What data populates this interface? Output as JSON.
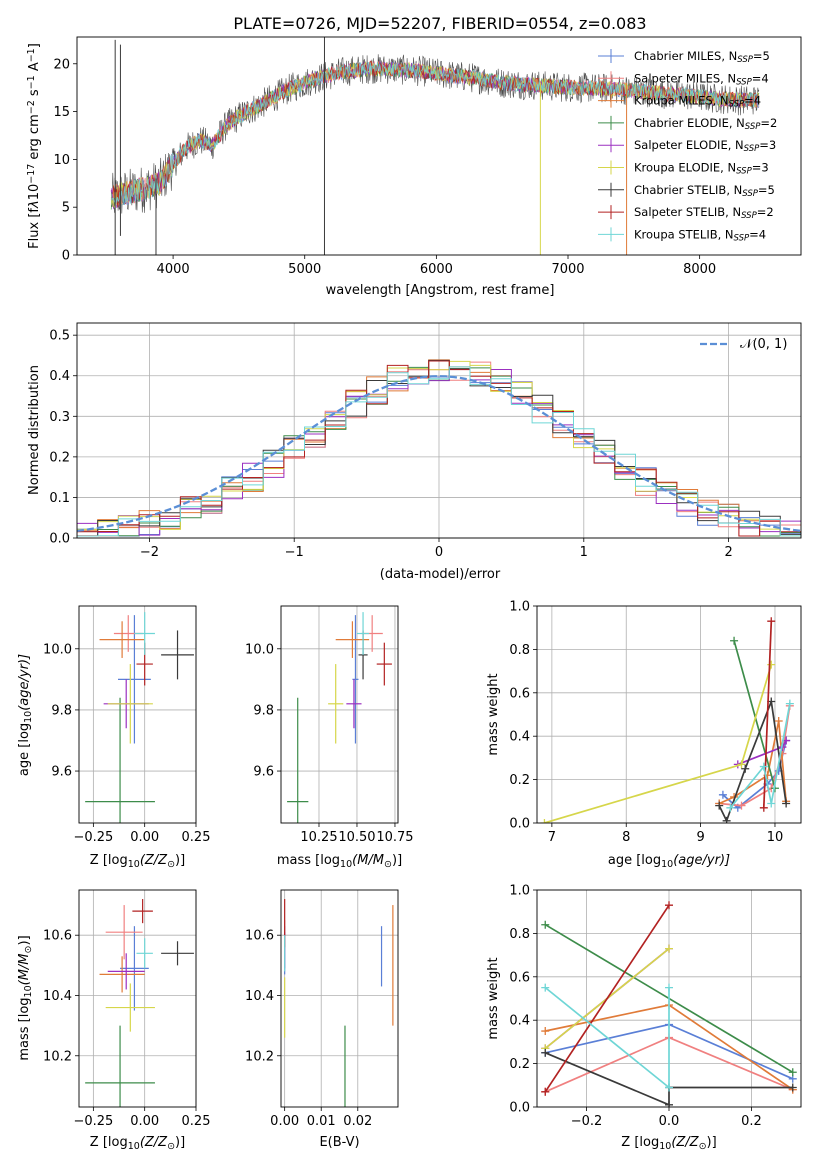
{
  "chart_data": [
    {
      "id": "spectrum",
      "type": "line",
      "title": "PLATE=0726, MJD=52207, FIBERID=0554, z=0.083",
      "xlabel": "wavelength [Angstrom, rest frame]",
      "ylabel_parts": [
        "Flux [f",
        "λ",
        "10",
        "−17",
        " erg cm",
        "−2",
        " s",
        "−1",
        " A",
        "−1",
        "]"
      ],
      "xlim": [
        3270,
        8770
      ],
      "ylim": [
        0,
        22.8
      ],
      "xticks": [
        4000,
        5000,
        6000,
        7000,
        8000
      ],
      "yticks": [
        0,
        5,
        10,
        15,
        20
      ],
      "grid": false,
      "legend_position": "right",
      "legend": [
        {
          "name": "Chabrier MILES",
          "n": "5",
          "color": "#5a7fd6"
        },
        {
          "name": "Salpeter MILES",
          "n": "4",
          "color": "#f08080"
        },
        {
          "name": "Kroupa MILES",
          "n": "4",
          "color": "#e07b39"
        },
        {
          "name": "Chabrier ELODIE",
          "n": "2",
          "color": "#3d8c4a"
        },
        {
          "name": "Salpeter ELODIE",
          "n": "3",
          "color": "#9b30c0"
        },
        {
          "name": "Kroupa ELODIE",
          "n": "3",
          "color": "#d6d64a"
        },
        {
          "name": "Chabrier STELIB",
          "n": "5",
          "color": "#3a3a3a"
        },
        {
          "name": "Salpeter STELIB",
          "n": "2",
          "color": "#b22222"
        },
        {
          "name": "Kroupa STELIB",
          "n": "4",
          "color": "#6fd6d6"
        }
      ],
      "legend_label_prefix": ", N",
      "legend_label_sub": "SSP",
      "legend_label_eq": "=",
      "continuum": {
        "x": [
          3530,
          3650,
          3800,
          3900,
          4000,
          4100,
          4200,
          4300,
          4400,
          4500,
          4700,
          4900,
          5100,
          5300,
          5500,
          5700,
          5900,
          6100,
          6300,
          6500,
          6700,
          6900,
          7100,
          7300,
          7500,
          7700,
          7900,
          8100,
          8300
        ],
        "y": [
          6,
          6.5,
          7,
          7.5,
          9.5,
          11.2,
          12.0,
          11.5,
          13.5,
          14.5,
          16.0,
          17.5,
          18.5,
          19.2,
          19.5,
          19.4,
          19.2,
          18.8,
          18.5,
          18.0,
          17.8,
          17.6,
          17.5,
          17.4,
          17.2,
          16.9,
          16.7,
          16.4,
          16.2
        ]
      }
    },
    {
      "id": "residuals",
      "type": "bar",
      "xlabel": "(data-model)/error",
      "ylabel": "Normed distribution",
      "xlim": [
        -2.5,
        2.5
      ],
      "ylim": [
        0,
        0.53
      ],
      "xticks": [
        -2,
        -1,
        0,
        1,
        2
      ],
      "yticks": [
        0.0,
        0.1,
        0.2,
        0.3,
        0.4,
        0.5
      ],
      "grid": true,
      "legend_label": "𝒩(0, 1)",
      "legend_position": "top-right",
      "normal_color": "#5b8fd6"
    },
    {
      "id": "age_vs_Z",
      "type": "scatter",
      "xlabel_parts": [
        "Z [log",
        "10",
        "(Z/Z",
        "⊙",
        ")]"
      ],
      "ylabel_parts": [
        "age  [log",
        "10",
        "(age/yr)]"
      ],
      "xlim": [
        -0.32,
        0.25
      ],
      "ylim": [
        9.43,
        10.14
      ],
      "xticks": [
        -0.25,
        0.0,
        0.25
      ],
      "xtick_labels": [
        "−0.25",
        "0.00",
        "0.25"
      ],
      "yticks": [
        9.6,
        9.8,
        10.0
      ],
      "grid": true,
      "points": [
        {
          "x": -0.05,
          "y": 9.9,
          "xerr": 0.08,
          "yerr": 0.21,
          "color": "#5a7fd6"
        },
        {
          "x": -0.08,
          "y": 10.05,
          "xerr": 0.07,
          "yerr": 0.06,
          "color": "#f08080"
        },
        {
          "x": -0.11,
          "y": 10.03,
          "xerr": 0.11,
          "yerr": 0.06,
          "color": "#e07b39"
        },
        {
          "x": -0.12,
          "y": 9.5,
          "xerr": 0.17,
          "yerr": 0.34,
          "color": "#3d8c4a"
        },
        {
          "x": -0.09,
          "y": 9.82,
          "xerr": 0.11,
          "yerr": 0.08,
          "color": "#9b30c0"
        },
        {
          "x": -0.07,
          "y": 9.82,
          "xerr": 0.11,
          "yerr": 0.13,
          "color": "#d6d64a"
        },
        {
          "x": 0.16,
          "y": 9.98,
          "xerr": 0.08,
          "yerr": 0.08,
          "color": "#3a3a3a"
        },
        {
          "x": 0.0,
          "y": 9.95,
          "xerr": 0.04,
          "yerr": 0.07,
          "color": "#b22222"
        },
        {
          "x": 0.0,
          "y": 10.05,
          "xerr": 0.05,
          "yerr": 0.07,
          "color": "#6fd6d6"
        }
      ]
    },
    {
      "id": "age_vs_mass",
      "type": "scatter",
      "xlabel_parts": [
        "mass [log",
        "10",
        "(M/M",
        "⊙",
        ")]"
      ],
      "xlim": [
        10.0,
        10.77
      ],
      "ylim": [
        9.43,
        10.14
      ],
      "xticks": [
        10.25,
        10.5,
        10.75
      ],
      "xtick_labels": [
        "10.25",
        "10.50",
        "10.75"
      ],
      "yticks": [
        9.6,
        9.8,
        10.0
      ],
      "grid": true,
      "points": [
        {
          "x": 10.49,
          "y": 9.9,
          "xerr": 0.02,
          "yerr": 0.21,
          "color": "#5a7fd6"
        },
        {
          "x": 10.6,
          "y": 10.05,
          "xerr": 0.07,
          "yerr": 0.06,
          "color": "#f08080"
        },
        {
          "x": 10.47,
          "y": 10.03,
          "xerr": 0.11,
          "yerr": 0.06,
          "color": "#e07b39"
        },
        {
          "x": 10.11,
          "y": 9.5,
          "xerr": 0.07,
          "yerr": 0.34,
          "color": "#3d8c4a"
        },
        {
          "x": 10.48,
          "y": 9.82,
          "xerr": 0.05,
          "yerr": 0.08,
          "color": "#9b30c0"
        },
        {
          "x": 10.36,
          "y": 9.82,
          "xerr": 0.05,
          "yerr": 0.13,
          "color": "#d6d64a"
        },
        {
          "x": 10.54,
          "y": 9.98,
          "xerr": 0.03,
          "yerr": 0.08,
          "color": "#3a3a3a"
        },
        {
          "x": 10.68,
          "y": 9.95,
          "xerr": 0.05,
          "yerr": 0.07,
          "color": "#b22222"
        },
        {
          "x": 10.54,
          "y": 10.05,
          "xerr": 0.04,
          "yerr": 0.07,
          "color": "#6fd6d6"
        }
      ]
    },
    {
      "id": "massweight_vs_age",
      "type": "line",
      "xlabel_parts": [
        "age  [log",
        "10",
        "(age/yr)]"
      ],
      "ylabel": "mass weight",
      "xlim": [
        6.8,
        10.35
      ],
      "ylim": [
        0,
        1.0
      ],
      "xticks": [
        7,
        8,
        9,
        10
      ],
      "yticks": [
        0.0,
        0.2,
        0.4,
        0.6,
        0.8,
        1.0
      ],
      "grid": true,
      "series": [
        {
          "color": "#5a7fd6",
          "x": [
            9.3,
            9.5,
            9.9,
            10.05,
            10.15
          ],
          "y": [
            0.13,
            0.07,
            0.18,
            0.24,
            0.38
          ]
        },
        {
          "color": "#f08080",
          "x": [
            9.25,
            9.55,
            9.95,
            10.1,
            10.2
          ],
          "y": [
            0.09,
            0.08,
            0.16,
            0.32,
            0.54
          ]
        },
        {
          "color": "#e07b39",
          "x": [
            9.25,
            9.45,
            9.9,
            10.05,
            10.15
          ],
          "y": [
            0.09,
            0.12,
            0.22,
            0.47,
            0.1
          ]
        },
        {
          "color": "#3d8c4a",
          "x": [
            9.45,
            10.0
          ],
          "y": [
            0.84,
            0.16
          ]
        },
        {
          "color": "#9b30c0",
          "x": [
            9.5,
            10.1,
            10.15
          ],
          "y": [
            0.27,
            0.35,
            0.38
          ]
        },
        {
          "color": "#d6d64a",
          "x": [
            6.9,
            9.55,
            9.95
          ],
          "y": [
            0.0,
            0.27,
            0.73
          ]
        },
        {
          "color": "#3a3a3a",
          "x": [
            9.25,
            9.35,
            9.6,
            9.95,
            10.15
          ],
          "y": [
            0.08,
            0.01,
            0.25,
            0.56,
            0.09
          ]
        },
        {
          "color": "#b22222",
          "x": [
            9.85,
            9.95
          ],
          "y": [
            0.07,
            0.93
          ]
        },
        {
          "color": "#6fd6d6",
          "x": [
            9.4,
            9.85,
            9.95,
            10.2
          ],
          "y": [
            0.07,
            0.26,
            0.09,
            0.55
          ]
        }
      ]
    },
    {
      "id": "mass_vs_Z",
      "type": "scatter",
      "xlabel_parts": [
        "Z [log",
        "10",
        "(Z/Z",
        "⊙",
        ")]"
      ],
      "ylabel_parts": [
        "mass [log",
        "10",
        "(M/M",
        "⊙",
        ")]"
      ],
      "xlim": [
        -0.32,
        0.25
      ],
      "ylim": [
        10.03,
        10.75
      ],
      "xticks": [
        -0.25,
        0.0,
        0.25
      ],
      "xtick_labels": [
        "−0.25",
        "0.00",
        "0.25"
      ],
      "yticks": [
        10.2,
        10.4,
        10.6
      ],
      "grid": true,
      "points": [
        {
          "x": -0.05,
          "y": 10.49,
          "xerr": 0.07,
          "yerr": 0.14,
          "color": "#5a7fd6"
        },
        {
          "x": -0.1,
          "y": 10.61,
          "xerr": 0.09,
          "yerr": 0.09,
          "color": "#f08080"
        },
        {
          "x": -0.11,
          "y": 10.47,
          "xerr": 0.11,
          "yerr": 0.06,
          "color": "#e07b39"
        },
        {
          "x": -0.12,
          "y": 10.11,
          "xerr": 0.17,
          "yerr": 0.19,
          "color": "#3d8c4a"
        },
        {
          "x": -0.09,
          "y": 10.48,
          "xerr": 0.09,
          "yerr": 0.06,
          "color": "#9b30c0"
        },
        {
          "x": -0.07,
          "y": 10.36,
          "xerr": 0.12,
          "yerr": 0.08,
          "color": "#d6d64a"
        },
        {
          "x": 0.16,
          "y": 10.54,
          "xerr": 0.08,
          "yerr": 0.04,
          "color": "#3a3a3a"
        },
        {
          "x": -0.01,
          "y": 10.68,
          "xerr": 0.05,
          "yerr": 0.04,
          "color": "#b22222"
        },
        {
          "x": 0.0,
          "y": 10.54,
          "xerr": 0.04,
          "yerr": 0.05,
          "color": "#6fd6d6"
        }
      ]
    },
    {
      "id": "mass_vs_EBV",
      "type": "scatter",
      "xlabel": "E(B-V)",
      "xlim": [
        -0.001,
        0.031
      ],
      "ylim": [
        10.03,
        10.75
      ],
      "xticks": [
        0.0,
        0.01,
        0.02
      ],
      "xtick_labels": [
        "0.00",
        "0.01",
        "0.02"
      ],
      "yticks": [
        10.2,
        10.4,
        10.6
      ],
      "grid": true,
      "points": [
        {
          "x": 0.0,
          "y": 10.55,
          "xerr": 0.0,
          "yerr": 0.08,
          "color": "#5a7fd6"
        },
        {
          "x": 0.0,
          "y": 10.6,
          "xerr": 0.0,
          "yerr": 0.05,
          "color": "#f08080"
        },
        {
          "x": 0.0296,
          "y": 10.5,
          "xerr": 0.0,
          "yerr": 0.2,
          "color": "#e07b39"
        },
        {
          "x": 0.0165,
          "y": 10.11,
          "xerr": 0.0,
          "yerr": 0.19,
          "color": "#3d8c4a"
        },
        {
          "x": 0.0,
          "y": 10.55,
          "xerr": 0.0,
          "yerr": 0.06,
          "color": "#9b30c0"
        },
        {
          "x": 0.0,
          "y": 10.36,
          "xerr": 0.0,
          "yerr": 0.1,
          "color": "#d6d64a"
        },
        {
          "x": 0.0265,
          "y": 10.53,
          "xerr": 0.0,
          "yerr": 0.1,
          "color": "#5a7fd6"
        },
        {
          "x": 0.0,
          "y": 10.64,
          "xerr": 0.0,
          "yerr": 0.08,
          "color": "#b22222"
        },
        {
          "x": 0.0,
          "y": 10.54,
          "xerr": 0.0,
          "yerr": 0.06,
          "color": "#6fd6d6"
        }
      ]
    },
    {
      "id": "massweight_vs_Z",
      "type": "line",
      "xlabel_parts": [
        "Z [log",
        "10",
        "(Z/Z",
        "⊙",
        ")]"
      ],
      "ylabel": "mass weight",
      "xlim": [
        -0.32,
        0.32
      ],
      "ylim": [
        0,
        1.0
      ],
      "xticks": [
        -0.2,
        0.0,
        0.2
      ],
      "xtick_labels": [
        "−0.2",
        "0.0",
        "0.2"
      ],
      "yticks": [
        0.0,
        0.2,
        0.4,
        0.6,
        0.8,
        1.0
      ],
      "grid": true,
      "series": [
        {
          "color": "#5a7fd6",
          "x": [
            -0.3,
            0.0,
            0.3
          ],
          "y": [
            0.25,
            0.38,
            0.13
          ]
        },
        {
          "color": "#f08080",
          "x": [
            -0.3,
            0.0,
            0.3
          ],
          "y": [
            0.07,
            0.32,
            0.08
          ]
        },
        {
          "color": "#e07b39",
          "x": [
            -0.3,
            0.0,
            0.3
          ],
          "y": [
            0.35,
            0.47,
            0.08
          ]
        },
        {
          "color": "#3d8c4a",
          "x": [
            -0.3,
            0.3
          ],
          "y": [
            0.84,
            0.16
          ]
        },
        {
          "color": "#9b30c0",
          "x": [
            -0.3,
            0.0
          ],
          "y": [
            0.27,
            0.73
          ]
        },
        {
          "color": "#d6d64a",
          "x": [
            -0.3,
            0.0
          ],
          "y": [
            0.27,
            0.73
          ]
        },
        {
          "color": "#3a3a3a",
          "x": [
            -0.3,
            0.0,
            0.0,
            0.3
          ],
          "y": [
            0.25,
            0.01,
            0.09,
            0.09
          ]
        },
        {
          "color": "#b22222",
          "x": [
            -0.3,
            0.0
          ],
          "y": [
            0.07,
            0.93
          ]
        },
        {
          "color": "#6fd6d6",
          "x": [
            -0.3,
            0.0,
            0.0
          ],
          "y": [
            0.55,
            0.09,
            0.55
          ]
        }
      ]
    }
  ]
}
